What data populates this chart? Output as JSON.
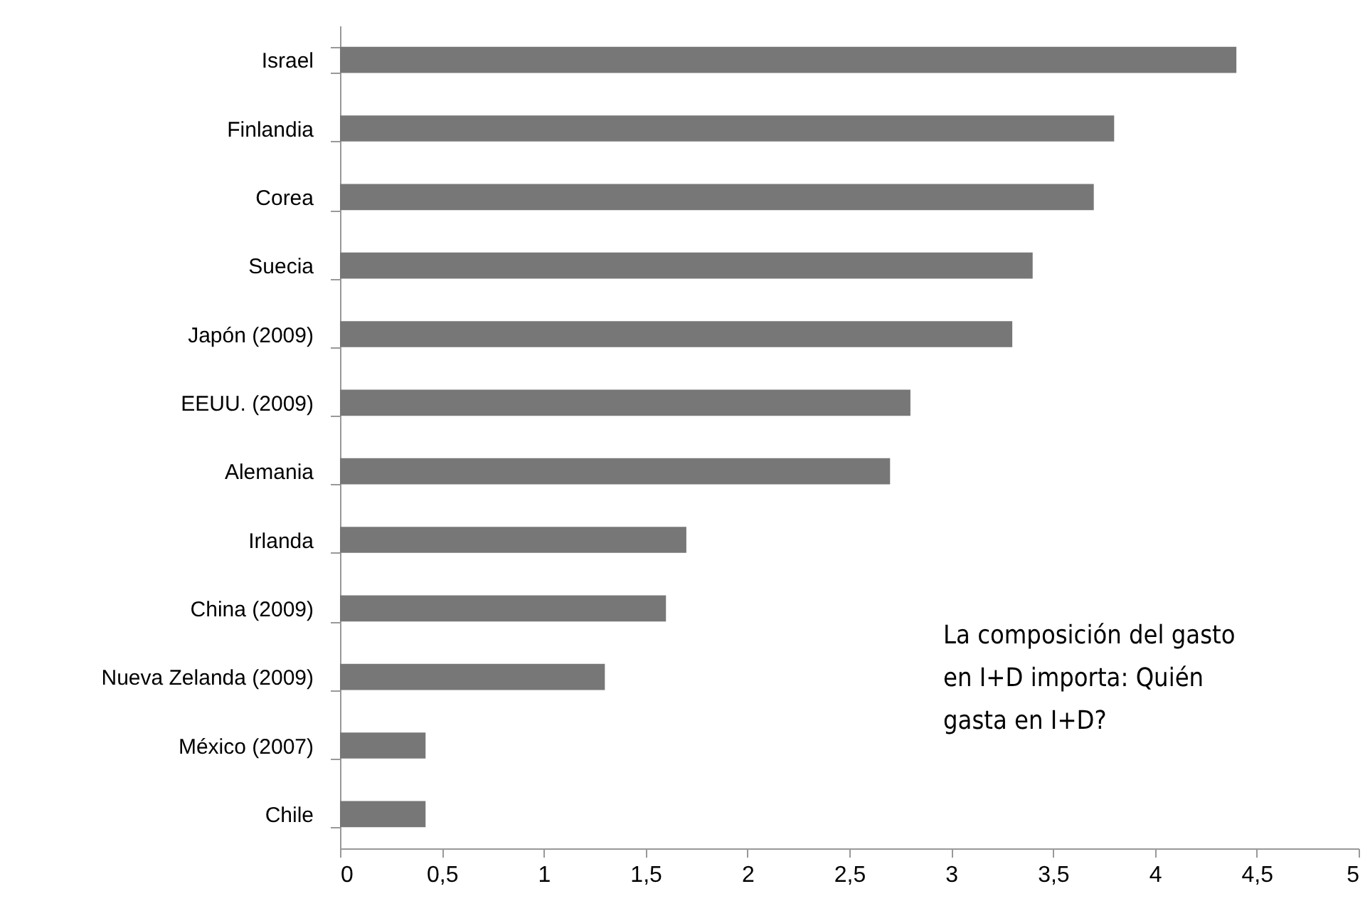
{
  "chart_data": {
    "type": "bar",
    "orientation": "horizontal",
    "categories": [
      "Israel",
      "Finlandia",
      "Corea",
      "Suecia",
      "Japón (2009)",
      "EEUU. (2009)",
      "Alemania",
      "Irlanda",
      "China (2009)",
      "Nueva Zelanda (2009)",
      "México (2007)",
      "Chile"
    ],
    "values": [
      4.4,
      3.8,
      3.7,
      3.4,
      3.3,
      2.8,
      2.7,
      1.7,
      1.6,
      1.3,
      0.42,
      0.42
    ],
    "color": "#777777",
    "xlim": [
      0,
      5
    ],
    "xticks": [
      0,
      {
        "value": 0.5,
        "label": "0,5"
      },
      1,
      {
        "value": 1.5,
        "label": "1,5"
      },
      2,
      {
        "value": 2.5,
        "label": "2,5"
      },
      3,
      {
        "value": 3.5,
        "label": "3,5"
      },
      4,
      {
        "value": 4.5,
        "label": "4,5"
      },
      5
    ],
    "grid": false,
    "annotations": [
      "La composición del gasto en I+D importa: Quién gasta en I+D?"
    ]
  }
}
